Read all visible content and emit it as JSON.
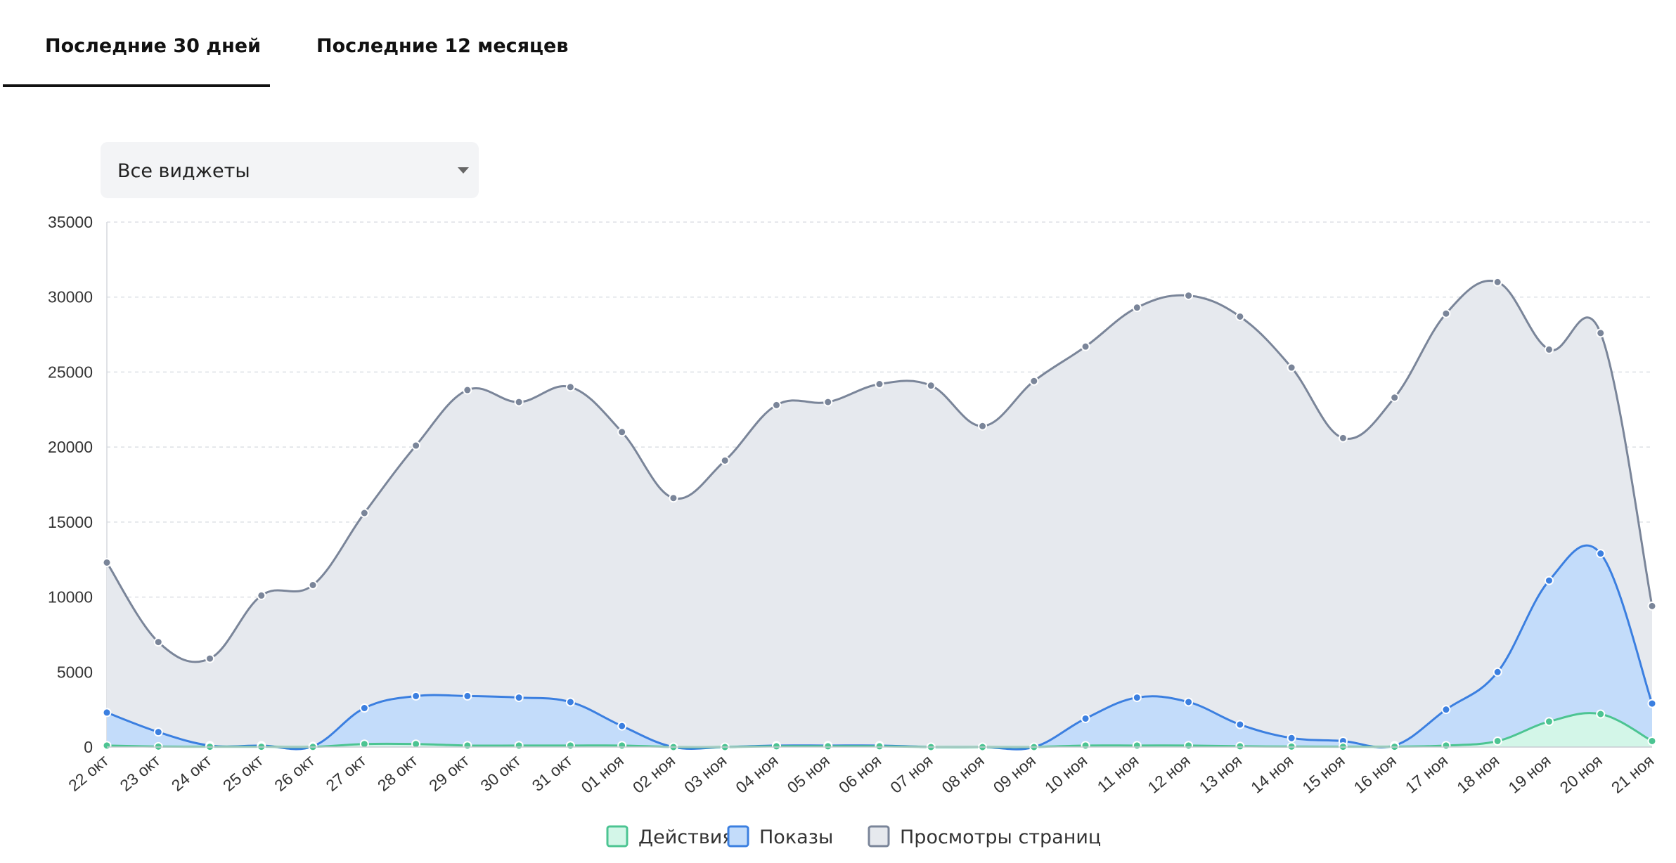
{
  "tabs": [
    {
      "label": "Последние 30 дней",
      "active": true
    },
    {
      "label": "Последние 12 месяцев",
      "active": false
    }
  ],
  "filter": {
    "selected": "Все виджеты"
  },
  "chart_data": {
    "type": "area",
    "categories": [
      "22 окт",
      "23 окт",
      "24 окт",
      "25 окт",
      "26 окт",
      "27 окт",
      "28 окт",
      "29 окт",
      "30 окт",
      "31 окт",
      "01 ноя",
      "02 ноя",
      "03 ноя",
      "04 ноя",
      "05 ноя",
      "06 ноя",
      "07 ноя",
      "08 ноя",
      "09 ноя",
      "10 ноя",
      "11 ноя",
      "12 ноя",
      "13 ноя",
      "14 ноя",
      "15 ноя",
      "16 ноя",
      "17 ноя",
      "18 ноя",
      "19 ноя",
      "20 ноя",
      "21 ноя"
    ],
    "ylim": [
      0,
      35000
    ],
    "yticks": [
      "0",
      "5000",
      "10000",
      "15000",
      "20000",
      "25000",
      "30000",
      "35000"
    ],
    "grid": true,
    "legend_position": "bottom",
    "series": [
      {
        "name": "Просмотры страниц",
        "color": "#7a8599",
        "fill": "#e6e9ee",
        "values": [
          12300,
          7000,
          5900,
          10100,
          10800,
          15600,
          20100,
          23800,
          23000,
          24000,
          21000,
          16600,
          19100,
          22800,
          23000,
          24200,
          24100,
          21400,
          24400,
          26700,
          29300,
          30100,
          28700,
          25300,
          20600,
          23300,
          28900,
          31000,
          26500,
          27600,
          9400
        ]
      },
      {
        "name": "Показы",
        "color": "#3b7fe0",
        "fill": "#c3dcfa",
        "values": [
          2300,
          1000,
          100,
          100,
          50,
          2600,
          3400,
          3400,
          3300,
          3000,
          1400,
          0,
          0,
          100,
          100,
          100,
          0,
          0,
          0,
          1900,
          3300,
          3000,
          1500,
          600,
          400,
          100,
          2500,
          5000,
          11100,
          12900,
          2900
        ]
      },
      {
        "name": "Действия",
        "color": "#4cc492",
        "fill": "#d3f6e8",
        "values": [
          100,
          30,
          20,
          20,
          10,
          200,
          200,
          100,
          100,
          100,
          100,
          0,
          0,
          50,
          50,
          50,
          0,
          0,
          0,
          100,
          100,
          100,
          50,
          30,
          20,
          20,
          100,
          400,
          1700,
          2200,
          400
        ]
      }
    ]
  }
}
